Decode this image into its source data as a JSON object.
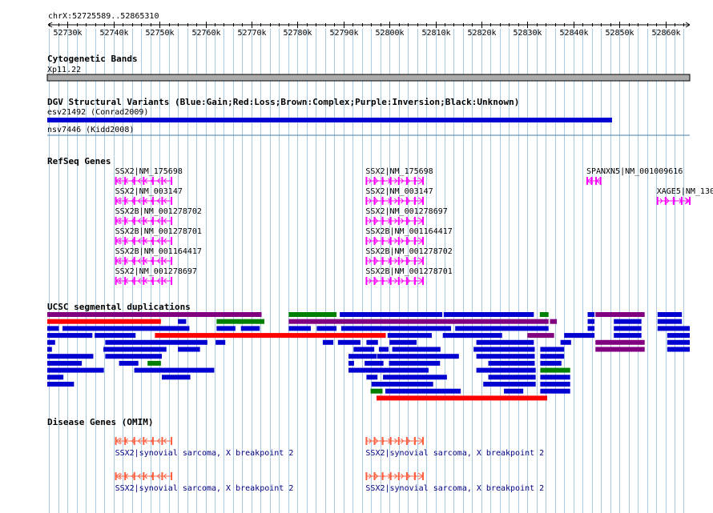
{
  "view": {
    "region": "chrX:52725589..52865310",
    "start": 52725589,
    "end": 52865310,
    "ticks": [
      {
        "pos": 52730000,
        "label": "52730k"
      },
      {
        "pos": 52740000,
        "label": "52740k"
      },
      {
        "pos": 52750000,
        "label": "52750k"
      },
      {
        "pos": 52760000,
        "label": "52760k"
      },
      {
        "pos": 52770000,
        "label": "52770k"
      },
      {
        "pos": 52780000,
        "label": "52780k"
      },
      {
        "pos": 52790000,
        "label": "52790k"
      },
      {
        "pos": 52800000,
        "label": "52800k"
      },
      {
        "pos": 52810000,
        "label": "52810k"
      },
      {
        "pos": 52820000,
        "label": "52820k"
      },
      {
        "pos": 52830000,
        "label": "52830k"
      },
      {
        "pos": 52840000,
        "label": "52840k"
      },
      {
        "pos": 52850000,
        "label": "52850k"
      },
      {
        "pos": 52860000,
        "label": "52860k"
      }
    ]
  },
  "colors": {
    "grid": "#a9c9e1",
    "blue": "#0000d0",
    "red": "#ff0000",
    "green": "#008000",
    "purple": "#800080",
    "magenta": "#ff00ff",
    "omim": "#ff6040",
    "omim_label": "#000080",
    "band": "#aaaaaa"
  },
  "tracks": {
    "cytoband": {
      "title": "Cytogenetic Bands",
      "label": "Xp11.22"
    },
    "dgv": {
      "title": "DGV Structural Variants (Blue:Gain;Red:Loss;Brown:Complex;Purple:Inversion;Black:Unknown)",
      "features": [
        {
          "label": "esv21492 (Conrad2009)",
          "start": 52725589,
          "end": 52848400,
          "color": "blue"
        },
        {
          "label": "nsv7446 (Kidd2008)"
        }
      ]
    },
    "refseq": {
      "title": "RefSeq Genes",
      "genes": [
        {
          "label": "SSX2|NM_175698",
          "start": 52740500,
          "end": 52752600,
          "strand": "-",
          "row": 0
        },
        {
          "label": "SSX2|NM_003147",
          "start": 52740500,
          "end": 52752600,
          "strand": "-",
          "row": 1
        },
        {
          "label": "SSX2B|NM_001278702",
          "start": 52740500,
          "end": 52752600,
          "strand": "-",
          "row": 2
        },
        {
          "label": "SSX2B|NM_001278701",
          "start": 52740500,
          "end": 52752600,
          "strand": "-",
          "row": 3
        },
        {
          "label": "SSX2B|NM_001164417",
          "start": 52740500,
          "end": 52752600,
          "strand": "-",
          "row": 4
        },
        {
          "label": "SSX2|NM_001278697",
          "start": 52740500,
          "end": 52752600,
          "strand": "-",
          "row": 5
        },
        {
          "label": "SSX2|NM_175698",
          "start": 52795000,
          "end": 52807300,
          "strand": "+",
          "row": 0
        },
        {
          "label": "SSX2|NM_003147",
          "start": 52795000,
          "end": 52807300,
          "strand": "+",
          "row": 1
        },
        {
          "label": "SSX2|NM_001278697",
          "start": 52795000,
          "end": 52807300,
          "strand": "+",
          "row": 2
        },
        {
          "label": "SSX2B|NM_001164417",
          "start": 52795000,
          "end": 52807300,
          "strand": "+",
          "row": 3
        },
        {
          "label": "SSX2B|NM_001278702",
          "start": 52795000,
          "end": 52807300,
          "strand": "+",
          "row": 4
        },
        {
          "label": "SSX2B|NM_001278701",
          "start": 52795000,
          "end": 52807300,
          "strand": "+",
          "row": 5
        },
        {
          "label": "SPANXN5|NM_001009616",
          "start": 52843000,
          "end": 52845900,
          "strand": "-",
          "row": 0
        },
        {
          "label": "XAGE5|NM_130",
          "start": 52858300,
          "end": 52865310,
          "strand": "+",
          "row": 1
        }
      ]
    },
    "segdups": {
      "title": "UCSC segmental duplications",
      "rows": [
        [
          [
            "purple",
            52725589,
            52772200
          ],
          [
            "green",
            52778100,
            52788500
          ],
          [
            "blue",
            52789200,
            52811500
          ],
          [
            "blue",
            52811800,
            52831400
          ],
          [
            "green",
            52832700,
            52834600
          ],
          [
            "blue",
            52843100,
            52844600
          ],
          [
            "purple",
            52844800,
            52855500
          ],
          [
            "blue",
            52858300,
            52863600
          ]
        ],
        [
          [
            "red",
            52725589,
            52750300
          ],
          [
            "blue",
            52754000,
            52755800
          ],
          [
            "green",
            52762400,
            52772800
          ],
          [
            "purple",
            52778100,
            52834600
          ],
          [
            "purple",
            52834900,
            52836400
          ],
          [
            "blue",
            52843100,
            52844600
          ],
          [
            "blue",
            52848800,
            52854800
          ],
          [
            "blue",
            52858300,
            52863600
          ]
        ],
        [
          [
            "blue",
            52725589,
            52728100
          ],
          [
            "blue",
            52728900,
            52756500
          ],
          [
            "blue",
            52762400,
            52766500
          ],
          [
            "blue",
            52767700,
            52771800
          ],
          [
            "blue",
            52778100,
            52782900
          ],
          [
            "blue",
            52784200,
            52788500
          ],
          [
            "blue",
            52789500,
            52813400
          ],
          [
            "blue",
            52814300,
            52834600
          ],
          [
            "blue",
            52843100,
            52844600
          ],
          [
            "blue",
            52848800,
            52854800
          ],
          [
            "blue",
            52858300,
            52865310
          ]
        ],
        [
          [
            "blue",
            52725589,
            52735400
          ],
          [
            "blue",
            52735900,
            52744800
          ],
          [
            "red",
            52749000,
            52799200
          ],
          [
            "blue",
            52799600,
            52809200
          ],
          [
            "blue",
            52811600,
            52824500
          ],
          [
            "purple",
            52830000,
            52835800
          ],
          [
            "blue",
            52838000,
            52844600
          ],
          [
            "blue",
            52848800,
            52854800
          ],
          [
            "blue",
            52860400,
            52865310
          ]
        ],
        [
          [
            "blue",
            52725589,
            52727300
          ],
          [
            "blue",
            52738200,
            52760400
          ],
          [
            "blue",
            52762200,
            52764300
          ],
          [
            "blue",
            52785500,
            52787800
          ],
          [
            "blue",
            52788800,
            52793700
          ],
          [
            "blue",
            52795000,
            52797500
          ],
          [
            "blue",
            52800000,
            52805900
          ],
          [
            "blue",
            52818900,
            52831400
          ],
          [
            "blue",
            52837200,
            52839500
          ],
          [
            "purple",
            52844800,
            52855500
          ],
          [
            "blue",
            52860400,
            52865310
          ]
        ],
        [
          [
            "blue",
            52725589,
            52726600
          ],
          [
            "blue",
            52737800,
            52751500
          ],
          [
            "blue",
            52754000,
            52758800
          ],
          [
            "blue",
            52792200,
            52796700
          ],
          [
            "blue",
            52797700,
            52799800
          ],
          [
            "blue",
            52800600,
            52811100
          ],
          [
            "blue",
            52818300,
            52831600
          ],
          [
            "blue",
            52832800,
            52838000
          ],
          [
            "purple",
            52844800,
            52855500
          ],
          [
            "blue",
            52860400,
            52865310
          ]
        ],
        [
          [
            "blue",
            52725589,
            52735600
          ],
          [
            "blue",
            52738200,
            52750500
          ],
          [
            "blue",
            52791100,
            52797200
          ],
          [
            "blue",
            52797300,
            52815100
          ],
          [
            "blue",
            52818900,
            52831600
          ],
          [
            "blue",
            52832800,
            52838000
          ]
        ],
        [
          [
            "blue",
            52725589,
            52733100
          ],
          [
            "blue",
            52741200,
            52745400
          ],
          [
            "green",
            52747400,
            52750300
          ],
          [
            "blue",
            52791100,
            52792300
          ],
          [
            "blue",
            52794600,
            52798700
          ],
          [
            "blue",
            52799900,
            52811000
          ],
          [
            "blue",
            52821500,
            52831600
          ],
          [
            "blue",
            52832800,
            52837400
          ]
        ],
        [
          [
            "blue",
            52725589,
            52737900
          ],
          [
            "blue",
            52744500,
            52761900
          ],
          [
            "blue",
            52791100,
            52808500
          ],
          [
            "blue",
            52818900,
            52831800
          ],
          [
            "green",
            52832800,
            52839300
          ]
        ],
        [
          [
            "blue",
            52725589,
            52729100
          ],
          [
            "blue",
            52750500,
            52756700
          ],
          [
            "blue",
            52795000,
            52797400
          ],
          [
            "blue",
            52798600,
            52812500
          ],
          [
            "blue",
            52821500,
            52831800
          ],
          [
            "blue",
            52832800,
            52839300
          ]
        ],
        [
          [
            "blue",
            52725589,
            52731400
          ],
          [
            "blue",
            52796100,
            52809500
          ],
          [
            "blue",
            52820400,
            52831800
          ],
          [
            "blue",
            52832800,
            52839300
          ]
        ],
        [
          [
            "green",
            52795900,
            52798500
          ],
          [
            "blue",
            52799100,
            52815500
          ],
          [
            "blue",
            52824900,
            52829100
          ],
          [
            "blue",
            52832800,
            52839300
          ]
        ],
        [
          [
            "red",
            52797200,
            52834300
          ]
        ]
      ]
    },
    "omim": {
      "title": "Disease Genes (OMIM)",
      "features": [
        {
          "label": "SSX2|synovial sarcoma, X breakpoint 2",
          "start": 52740500,
          "end": 52752600,
          "strand": "-",
          "row": 0
        },
        {
          "label": "SSX2|synovial sarcoma, X breakpoint 2",
          "start": 52795000,
          "end": 52807300,
          "strand": "+",
          "row": 0
        },
        {
          "label": "SSX2|synovial sarcoma, X breakpoint 2",
          "start": 52740500,
          "end": 52752600,
          "strand": "-",
          "row": 1
        },
        {
          "label": "SSX2|synovial sarcoma, X breakpoint 2",
          "start": 52795000,
          "end": 52807300,
          "strand": "+",
          "row": 1
        }
      ]
    }
  }
}
